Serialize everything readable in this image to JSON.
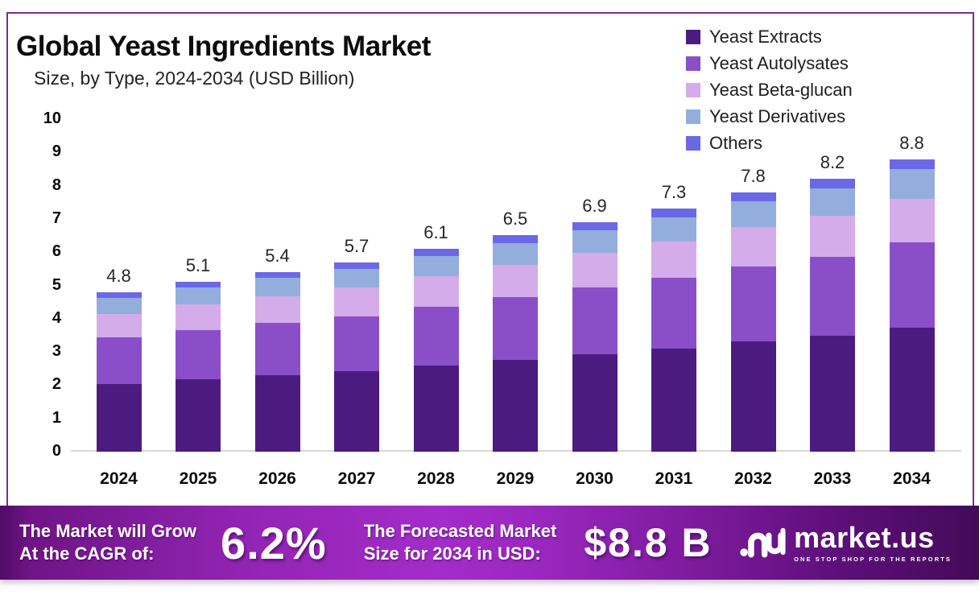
{
  "header": {
    "title": "Global Yeast Ingredients Market",
    "subtitle": "Size, by Type, 2024-2034 (USD Billion)"
  },
  "chart_data": {
    "type": "bar",
    "stacked": true,
    "title": "Global Yeast Ingredients Market Size, by Type, 2024-2034 (USD Billion)",
    "categories": [
      "2024",
      "2025",
      "2026",
      "2027",
      "2028",
      "2029",
      "2030",
      "2031",
      "2032",
      "2033",
      "2034"
    ],
    "series": [
      {
        "name": "Yeast Extracts",
        "color": "#4c1b80",
        "values": [
          2.04,
          2.17,
          2.3,
          2.42,
          2.59,
          2.76,
          2.93,
          3.1,
          3.32,
          3.49,
          3.74
        ]
      },
      {
        "name": "Yeast Autolysates",
        "color": "#8a4fc8",
        "values": [
          1.39,
          1.48,
          1.57,
          1.65,
          1.77,
          1.89,
          2.0,
          2.12,
          2.26,
          2.38,
          2.55
        ]
      },
      {
        "name": "Yeast Beta-glucan",
        "color": "#d4ace9",
        "values": [
          0.72,
          0.77,
          0.81,
          0.86,
          0.92,
          0.98,
          1.04,
          1.1,
          1.17,
          1.23,
          1.32
        ]
      },
      {
        "name": "Yeast Derivatives",
        "color": "#93aedc",
        "values": [
          0.48,
          0.51,
          0.54,
          0.57,
          0.61,
          0.65,
          0.69,
          0.73,
          0.78,
          0.82,
          0.88
        ]
      },
      {
        "name": "Others",
        "color": "#6b68e6",
        "values": [
          0.17,
          0.18,
          0.19,
          0.2,
          0.21,
          0.23,
          0.24,
          0.26,
          0.27,
          0.29,
          0.31
        ]
      }
    ],
    "totals_labels": [
      "4.8",
      "5.1",
      "5.4",
      "5.7",
      "6.1",
      "6.5",
      "6.9",
      "7.3",
      "7.8",
      "8.2",
      "8.8"
    ],
    "ylim": [
      0,
      10
    ],
    "yticks": [
      0,
      1,
      2,
      3,
      4,
      5,
      6,
      7,
      8,
      9,
      10
    ],
    "grid": false,
    "legend_position": "top-right"
  },
  "footer": {
    "cagr_label_line1": "The Market will Grow",
    "cagr_label_line2": "At the CAGR of:",
    "cagr_value": "6.2%",
    "forecast_label_line1": "The Forecasted Market",
    "forecast_label_line2": "Size for 2034 in USD:",
    "forecast_value": "$8.8 B",
    "brand": {
      "name": "market.us",
      "tagline": "ONE STOP SHOP FOR THE REPORTS"
    }
  }
}
